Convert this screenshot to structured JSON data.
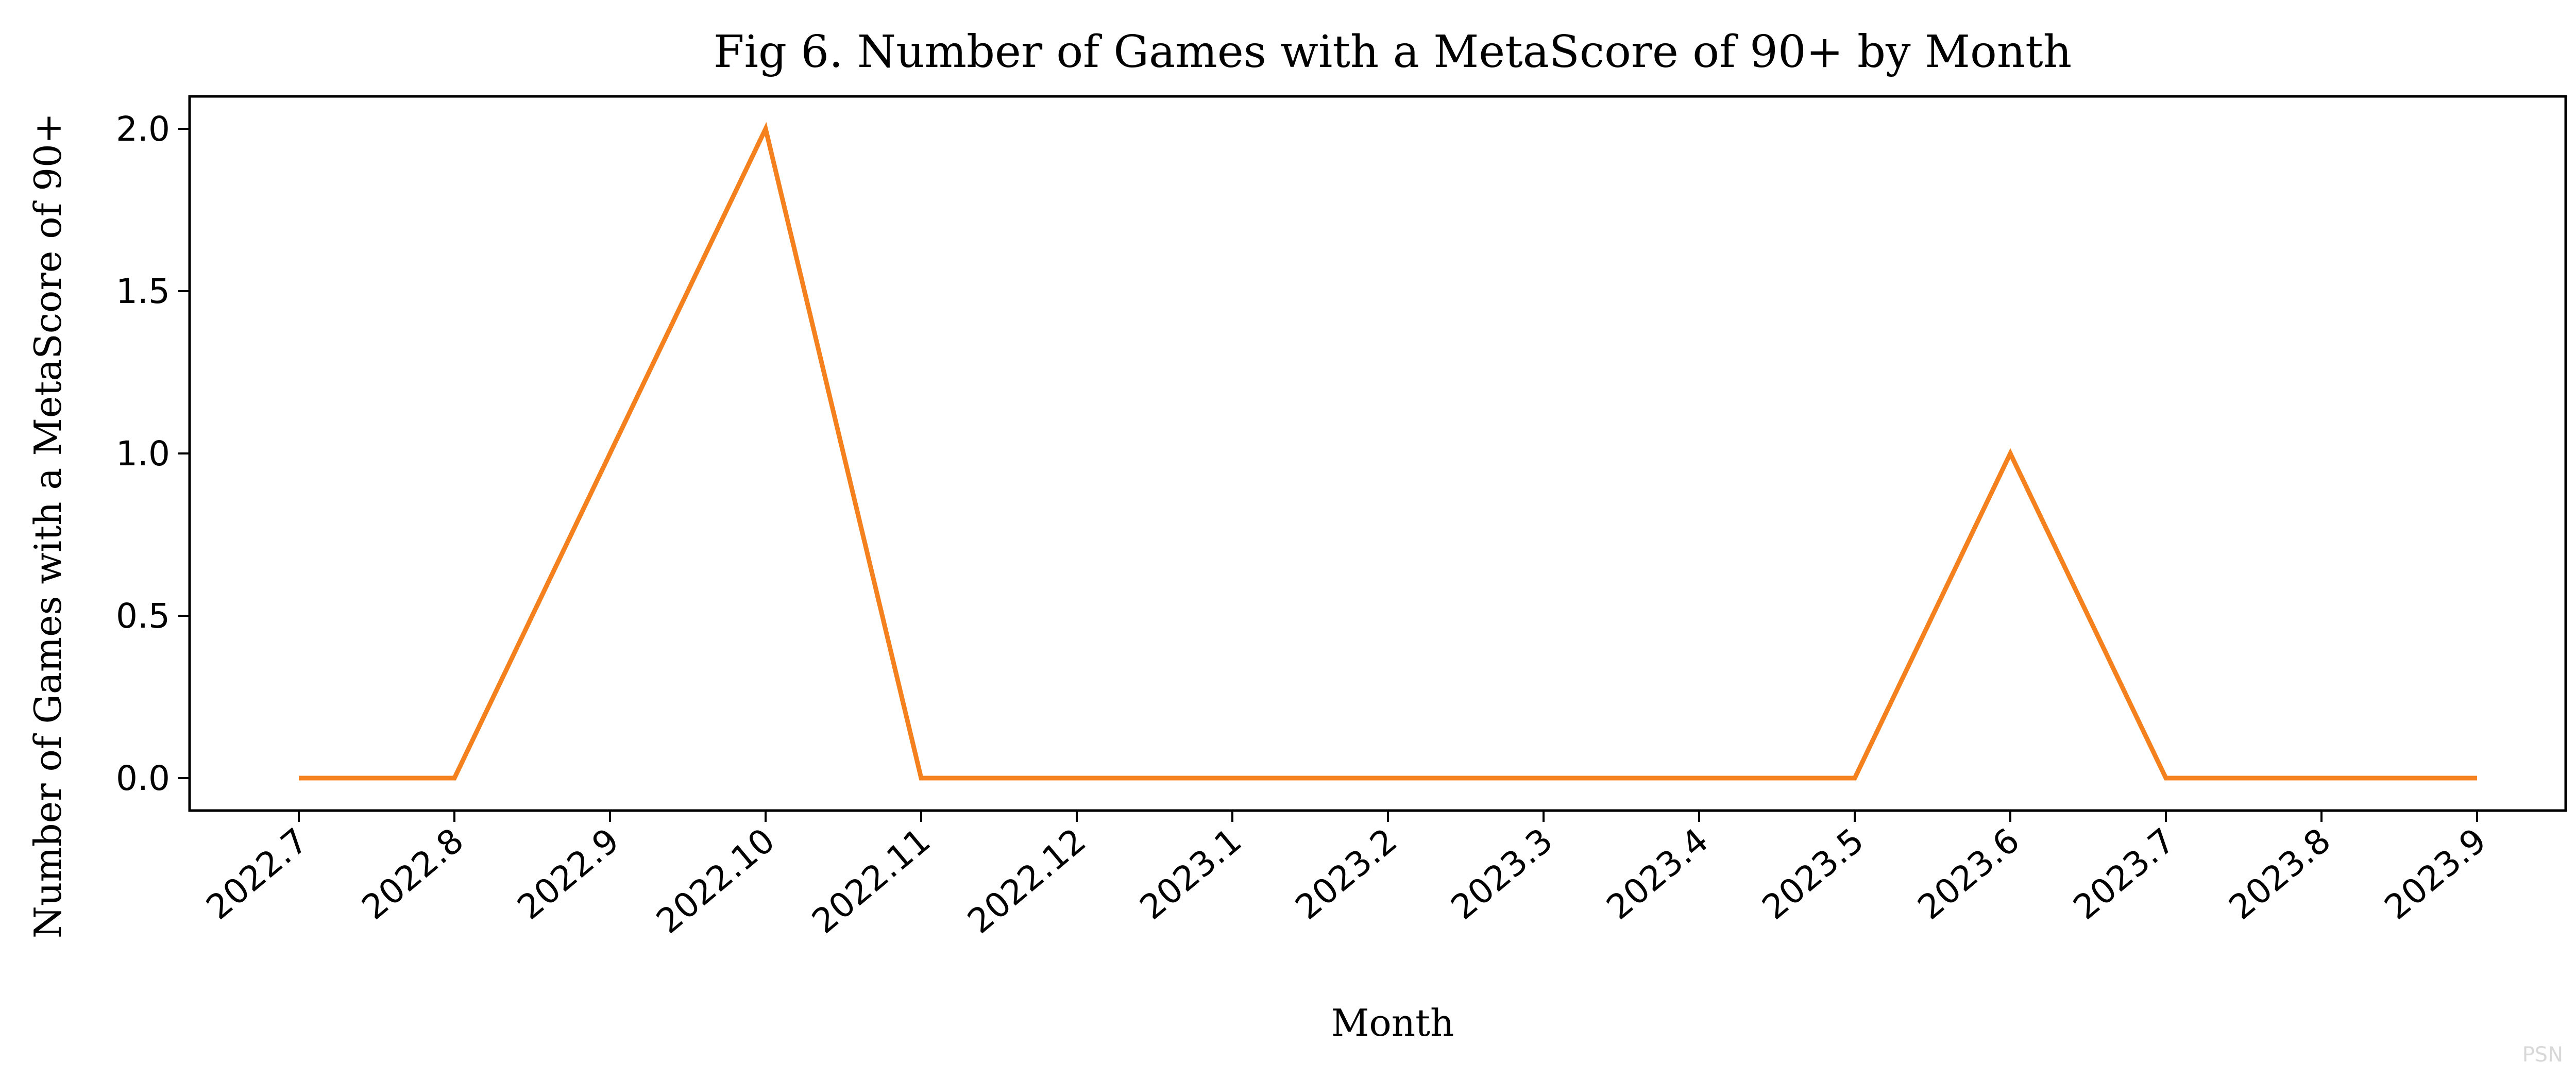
{
  "chart_data": {
    "type": "line",
    "title": "Fig 6. Number of Games with a MetaScore of 90+ by Month",
    "xlabel": "Month",
    "ylabel": "Number of Games with a MetaScore of 90+",
    "categories": [
      "2022.7",
      "2022.8",
      "2022.9",
      "2022.10",
      "2022.11",
      "2022.12",
      "2023.1",
      "2023.2",
      "2023.3",
      "2023.4",
      "2023.5",
      "2023.6",
      "2023.7",
      "2023.8",
      "2023.9"
    ],
    "series": [
      {
        "values": [
          0,
          0,
          1,
          2,
          0,
          0,
          0,
          0,
          0,
          0,
          0,
          1,
          0,
          0,
          0
        ],
        "color": "#f5801e"
      }
    ],
    "ylim": [
      -0.1,
      2.1
    ],
    "yticks": [
      0.0,
      0.5,
      1.0,
      1.5,
      2.0
    ],
    "ytick_labels": [
      "0.0",
      "0.5",
      "1.0",
      "1.5",
      "2.0"
    ],
    "grid": false,
    "legend": "none"
  },
  "watermark": "PSN"
}
